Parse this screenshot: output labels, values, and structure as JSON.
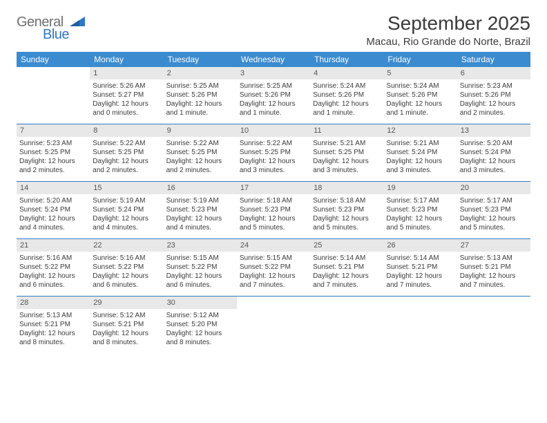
{
  "logo": {
    "general": "General",
    "blue": "Blue"
  },
  "header": {
    "month_title": "September 2025",
    "location": "Macau, Rio Grande do Norte, Brazil"
  },
  "colors": {
    "header_bg": "#3b8bd0",
    "header_fg": "#ffffff",
    "daynum_bg": "#e8e8e8",
    "rule": "#2f78c2"
  },
  "day_names": [
    "Sunday",
    "Monday",
    "Tuesday",
    "Wednesday",
    "Thursday",
    "Friday",
    "Saturday"
  ],
  "weeks": [
    [
      null,
      {
        "n": "1",
        "sr": "5:26 AM",
        "ss": "5:27 PM",
        "dl": "12 hours and 0 minutes."
      },
      {
        "n": "2",
        "sr": "5:25 AM",
        "ss": "5:26 PM",
        "dl": "12 hours and 1 minute."
      },
      {
        "n": "3",
        "sr": "5:25 AM",
        "ss": "5:26 PM",
        "dl": "12 hours and 1 minute."
      },
      {
        "n": "4",
        "sr": "5:24 AM",
        "ss": "5:26 PM",
        "dl": "12 hours and 1 minute."
      },
      {
        "n": "5",
        "sr": "5:24 AM",
        "ss": "5:26 PM",
        "dl": "12 hours and 1 minute."
      },
      {
        "n": "6",
        "sr": "5:23 AM",
        "ss": "5:26 PM",
        "dl": "12 hours and 2 minutes."
      }
    ],
    [
      {
        "n": "7",
        "sr": "5:23 AM",
        "ss": "5:25 PM",
        "dl": "12 hours and 2 minutes."
      },
      {
        "n": "8",
        "sr": "5:22 AM",
        "ss": "5:25 PM",
        "dl": "12 hours and 2 minutes."
      },
      {
        "n": "9",
        "sr": "5:22 AM",
        "ss": "5:25 PM",
        "dl": "12 hours and 2 minutes."
      },
      {
        "n": "10",
        "sr": "5:22 AM",
        "ss": "5:25 PM",
        "dl": "12 hours and 3 minutes."
      },
      {
        "n": "11",
        "sr": "5:21 AM",
        "ss": "5:25 PM",
        "dl": "12 hours and 3 minutes."
      },
      {
        "n": "12",
        "sr": "5:21 AM",
        "ss": "5:24 PM",
        "dl": "12 hours and 3 minutes."
      },
      {
        "n": "13",
        "sr": "5:20 AM",
        "ss": "5:24 PM",
        "dl": "12 hours and 3 minutes."
      }
    ],
    [
      {
        "n": "14",
        "sr": "5:20 AM",
        "ss": "5:24 PM",
        "dl": "12 hours and 4 minutes."
      },
      {
        "n": "15",
        "sr": "5:19 AM",
        "ss": "5:24 PM",
        "dl": "12 hours and 4 minutes."
      },
      {
        "n": "16",
        "sr": "5:19 AM",
        "ss": "5:23 PM",
        "dl": "12 hours and 4 minutes."
      },
      {
        "n": "17",
        "sr": "5:18 AM",
        "ss": "5:23 PM",
        "dl": "12 hours and 5 minutes."
      },
      {
        "n": "18",
        "sr": "5:18 AM",
        "ss": "5:23 PM",
        "dl": "12 hours and 5 minutes."
      },
      {
        "n": "19",
        "sr": "5:17 AM",
        "ss": "5:23 PM",
        "dl": "12 hours and 5 minutes."
      },
      {
        "n": "20",
        "sr": "5:17 AM",
        "ss": "5:23 PM",
        "dl": "12 hours and 5 minutes."
      }
    ],
    [
      {
        "n": "21",
        "sr": "5:16 AM",
        "ss": "5:22 PM",
        "dl": "12 hours and 6 minutes."
      },
      {
        "n": "22",
        "sr": "5:16 AM",
        "ss": "5:22 PM",
        "dl": "12 hours and 6 minutes."
      },
      {
        "n": "23",
        "sr": "5:15 AM",
        "ss": "5:22 PM",
        "dl": "12 hours and 6 minutes."
      },
      {
        "n": "24",
        "sr": "5:15 AM",
        "ss": "5:22 PM",
        "dl": "12 hours and 7 minutes."
      },
      {
        "n": "25",
        "sr": "5:14 AM",
        "ss": "5:21 PM",
        "dl": "12 hours and 7 minutes."
      },
      {
        "n": "26",
        "sr": "5:14 AM",
        "ss": "5:21 PM",
        "dl": "12 hours and 7 minutes."
      },
      {
        "n": "27",
        "sr": "5:13 AM",
        "ss": "5:21 PM",
        "dl": "12 hours and 7 minutes."
      }
    ],
    [
      {
        "n": "28",
        "sr": "5:13 AM",
        "ss": "5:21 PM",
        "dl": "12 hours and 8 minutes."
      },
      {
        "n": "29",
        "sr": "5:12 AM",
        "ss": "5:21 PM",
        "dl": "12 hours and 8 minutes."
      },
      {
        "n": "30",
        "sr": "5:12 AM",
        "ss": "5:20 PM",
        "dl": "12 hours and 8 minutes."
      },
      null,
      null,
      null,
      null
    ]
  ],
  "labels": {
    "sunrise": "Sunrise:",
    "sunset": "Sunset:",
    "daylight": "Daylight:"
  }
}
